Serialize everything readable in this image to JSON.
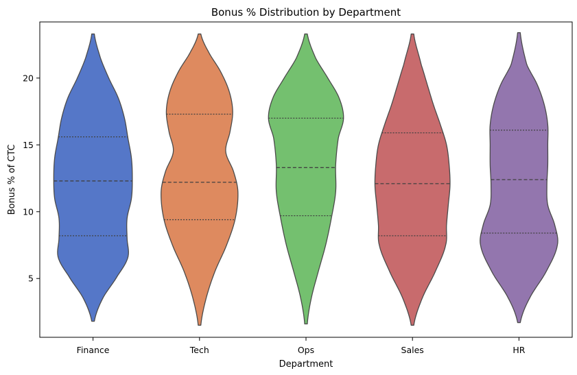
{
  "chart_data": {
    "type": "violin",
    "title": "Bonus % Distribution by Department",
    "xlabel": "Department",
    "ylabel": "Bonus % of CTC",
    "ylim": [
      0.6,
      24.2
    ],
    "yticks": [
      5,
      10,
      15,
      20
    ],
    "grid": false,
    "inner": "quartile",
    "categories": [
      "Finance",
      "Tech",
      "Ops",
      "Sales",
      "HR"
    ],
    "colors": [
      "#5577c8",
      "#de8a5f",
      "#74c06f",
      "#c86b6d",
      "#9376ae"
    ],
    "series": [
      {
        "name": "Finance",
        "min": 1.8,
        "max": 23.3,
        "q1": 8.2,
        "median": 12.3,
        "q3": 15.6,
        "density": [
          [
            1.8,
            0.03
          ],
          [
            3.5,
            0.22
          ],
          [
            5.2,
            0.56
          ],
          [
            6.6,
            0.8
          ],
          [
            8.0,
            0.78
          ],
          [
            9.5,
            0.78
          ],
          [
            11.0,
            0.88
          ],
          [
            12.5,
            0.9
          ],
          [
            14.0,
            0.88
          ],
          [
            15.5,
            0.8
          ],
          [
            17.0,
            0.72
          ],
          [
            18.5,
            0.58
          ],
          [
            20.0,
            0.36
          ],
          [
            21.5,
            0.17
          ],
          [
            23.3,
            0.03
          ]
        ]
      },
      {
        "name": "Tech",
        "min": 1.5,
        "max": 23.3,
        "q1": 9.4,
        "median": 12.2,
        "q3": 17.3,
        "density": [
          [
            1.5,
            0.03
          ],
          [
            3.5,
            0.15
          ],
          [
            5.5,
            0.35
          ],
          [
            7.5,
            0.62
          ],
          [
            9.5,
            0.82
          ],
          [
            11.5,
            0.88
          ],
          [
            13.0,
            0.78
          ],
          [
            14.5,
            0.6
          ],
          [
            16.0,
            0.7
          ],
          [
            17.5,
            0.76
          ],
          [
            19.0,
            0.68
          ],
          [
            20.5,
            0.48
          ],
          [
            22.0,
            0.2
          ],
          [
            23.3,
            0.03
          ]
        ]
      },
      {
        "name": "Ops",
        "min": 1.6,
        "max": 23.3,
        "q1": 9.7,
        "median": 13.3,
        "q3": 17.0,
        "density": [
          [
            1.6,
            0.03
          ],
          [
            3.5,
            0.12
          ],
          [
            5.5,
            0.28
          ],
          [
            7.5,
            0.45
          ],
          [
            9.5,
            0.58
          ],
          [
            11.5,
            0.68
          ],
          [
            13.5,
            0.68
          ],
          [
            15.5,
            0.74
          ],
          [
            17.0,
            0.86
          ],
          [
            18.5,
            0.76
          ],
          [
            20.0,
            0.5
          ],
          [
            21.5,
            0.22
          ],
          [
            23.3,
            0.03
          ]
        ]
      },
      {
        "name": "Sales",
        "min": 1.5,
        "max": 23.3,
        "q1": 8.2,
        "median": 12.1,
        "q3": 15.9,
        "density": [
          [
            1.5,
            0.03
          ],
          [
            3.5,
            0.22
          ],
          [
            5.5,
            0.52
          ],
          [
            7.5,
            0.76
          ],
          [
            9.0,
            0.78
          ],
          [
            10.5,
            0.82
          ],
          [
            12.0,
            0.86
          ],
          [
            13.5,
            0.84
          ],
          [
            15.0,
            0.78
          ],
          [
            16.5,
            0.64
          ],
          [
            18.0,
            0.48
          ],
          [
            19.5,
            0.34
          ],
          [
            21.0,
            0.2
          ],
          [
            23.3,
            0.03
          ]
        ]
      },
      {
        "name": "HR",
        "min": 1.7,
        "max": 23.4,
        "q1": 8.4,
        "median": 12.4,
        "q3": 16.1,
        "density": [
          [
            1.7,
            0.03
          ],
          [
            3.5,
            0.24
          ],
          [
            5.5,
            0.62
          ],
          [
            7.5,
            0.88
          ],
          [
            9.0,
            0.82
          ],
          [
            10.5,
            0.66
          ],
          [
            12.0,
            0.64
          ],
          [
            13.5,
            0.66
          ],
          [
            15.0,
            0.66
          ],
          [
            16.5,
            0.66
          ],
          [
            18.0,
            0.58
          ],
          [
            19.5,
            0.42
          ],
          [
            21.0,
            0.18
          ],
          [
            23.4,
            0.03
          ]
        ]
      }
    ]
  }
}
